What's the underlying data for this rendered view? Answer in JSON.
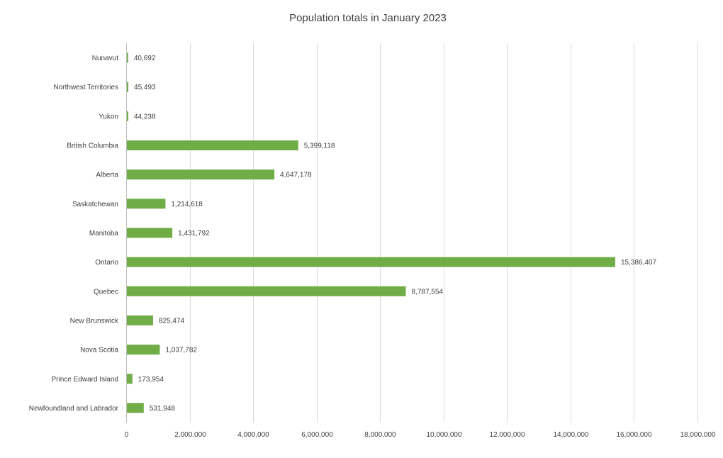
{
  "chart_data": {
    "type": "bar",
    "orientation": "horizontal",
    "title": "Population totals in January 2023",
    "xlabel": "",
    "ylabel": "",
    "categories": [
      "Nunavut",
      "Northwest Territories",
      "Yukon",
      "British Columbia",
      "Alberta",
      "Saskatchewan",
      "Manitoba",
      "Ontario",
      "Quebec",
      "New Brunswick",
      "Nova Scotia",
      "Prince Edward Island",
      "Newfoundland and Labrador"
    ],
    "values": [
      40692,
      45493,
      44238,
      5399118,
      4647178,
      1214618,
      1431792,
      15386407,
      8787554,
      825474,
      1037782,
      173954,
      531948
    ],
    "data_labels": [
      "40,692",
      "45,493",
      "44,238",
      "5,399,118",
      "4,647,178",
      "1,214,618",
      "1,431,792",
      "15,386,407",
      "8,787,554",
      "825,474",
      "1,037,782",
      "173,954",
      "531,948"
    ],
    "xlim": [
      0,
      18000000
    ],
    "x_ticks": [
      0,
      2000000,
      4000000,
      6000000,
      8000000,
      10000000,
      12000000,
      14000000,
      16000000,
      18000000
    ],
    "x_tick_labels": [
      "0",
      "2,000,000",
      "4,000,000",
      "6,000,000",
      "8,000,000",
      "10,000,000",
      "12,000,000",
      "14,000,000",
      "16,000,000",
      "18,000,000"
    ],
    "grid": "vertical",
    "legend": "none",
    "bar_color": "#70ad47"
  }
}
